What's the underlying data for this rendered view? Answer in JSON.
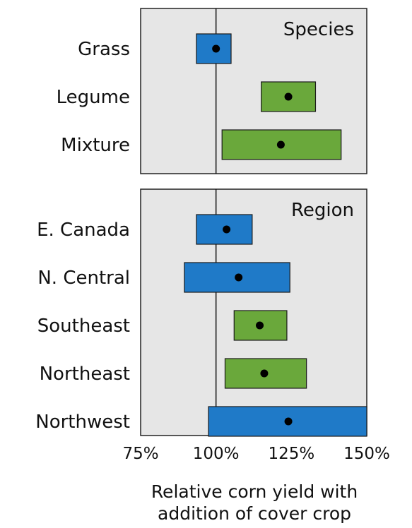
{
  "chart_data": {
    "type": "range",
    "xlim": [
      75,
      150
    ],
    "x_ticks": [
      "75%",
      "100%",
      "125%",
      "150%"
    ],
    "reference_line": 100,
    "xlabel_lines": [
      "Relative corn yield with",
      "addition of cover crop"
    ],
    "colors": {
      "blue": "#1f7ac8",
      "green": "#6aa83b",
      "panel_bg": "#e6e6e6"
    },
    "panels": [
      {
        "title": "Species",
        "rows": [
          {
            "label": "Grass",
            "low": 93.5,
            "high": 105,
            "point": 100,
            "color": "blue"
          },
          {
            "label": "Legume",
            "low": 115,
            "high": 133,
            "point": 124,
            "color": "green"
          },
          {
            "label": "Mixture",
            "low": 102,
            "high": 141.5,
            "point": 121.5,
            "color": "green"
          }
        ]
      },
      {
        "title": "Region",
        "rows": [
          {
            "label": "E. Canada",
            "low": 93.5,
            "high": 112,
            "point": 103.5,
            "color": "blue"
          },
          {
            "label": "N. Central",
            "low": 89.5,
            "high": 124.5,
            "point": 107.5,
            "color": "blue"
          },
          {
            "label": "Southeast",
            "low": 106,
            "high": 123.5,
            "point": 114.5,
            "color": "green"
          },
          {
            "label": "Northeast",
            "low": 103,
            "high": 130,
            "point": 116,
            "color": "green"
          },
          {
            "label": "Northwest",
            "low": 97.5,
            "high": 150,
            "point": 124,
            "color": "blue"
          }
        ]
      }
    ]
  }
}
